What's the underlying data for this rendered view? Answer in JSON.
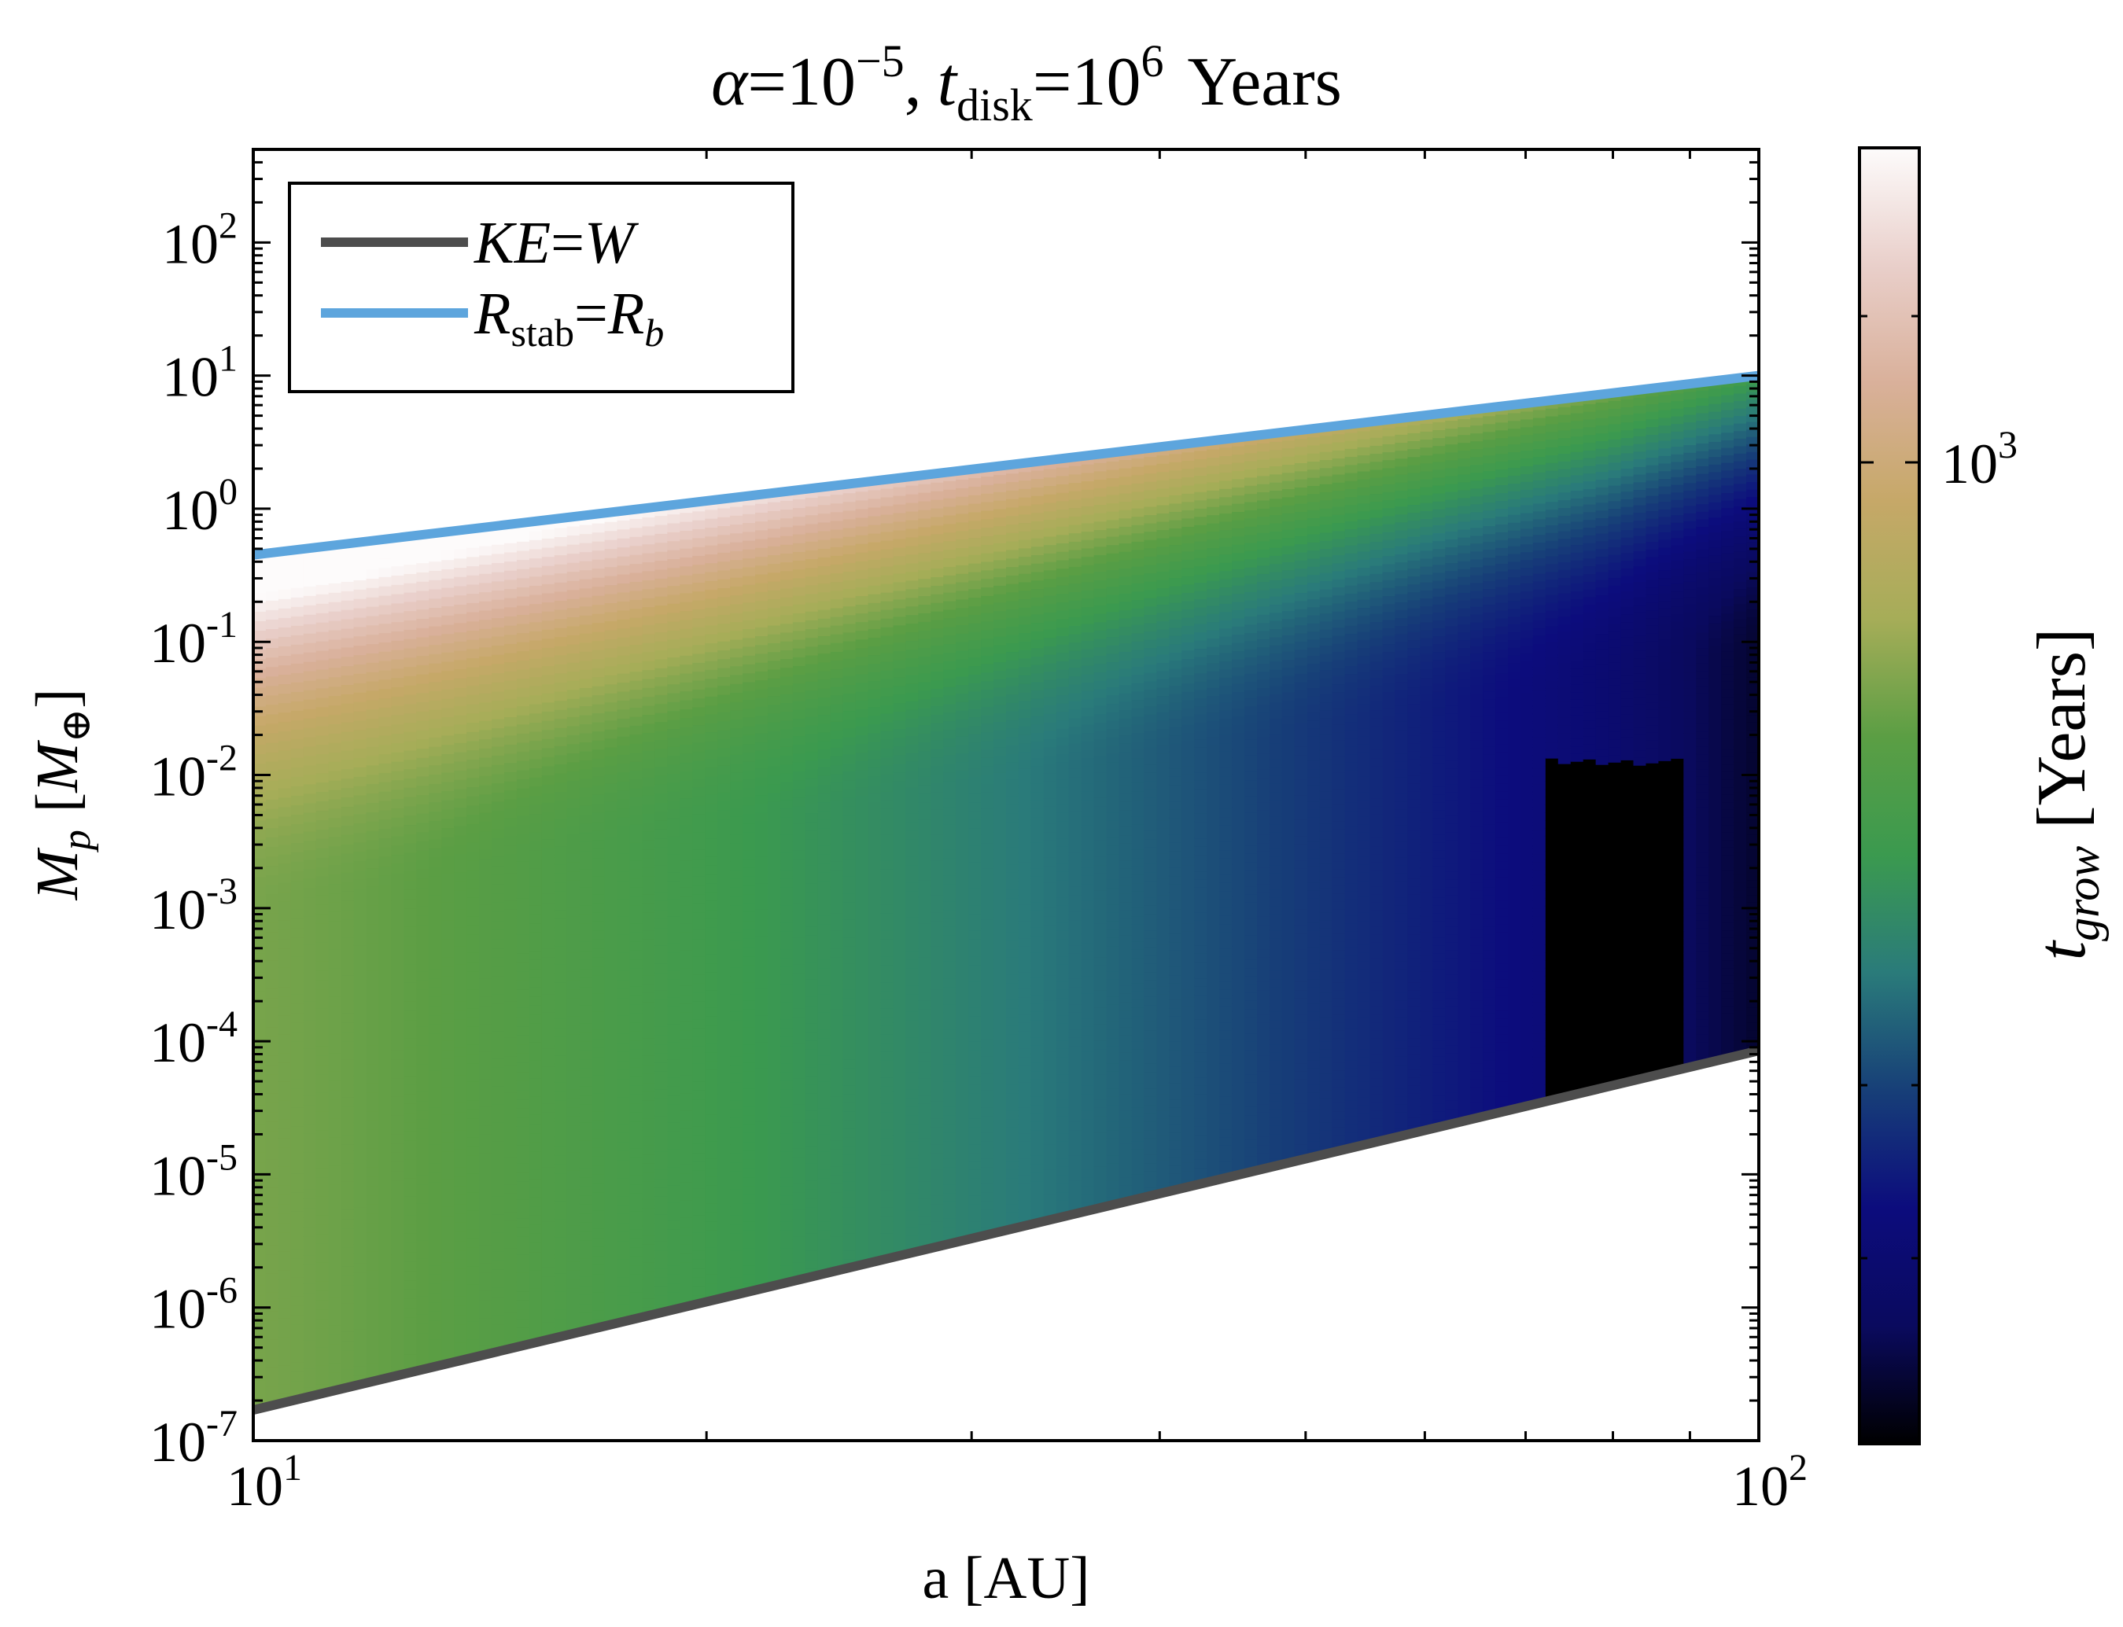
{
  "chart_data": {
    "type": "heatmap",
    "title": {
      "alpha_sym": "α",
      "alpha_eq": "=10",
      "alpha_exp": "−5",
      "sep": ",",
      "t_sym": "t",
      "t_sub": "disk",
      "t_eq": "=10",
      "t_exp": "6",
      "unit": "Years"
    },
    "xlabel": "a [AU]",
    "ylabel": {
      "main": "M",
      "sub": "p",
      "unit_open": "[",
      "unit_main": "M",
      "unit_sub": "⊕",
      "unit_close": "]"
    },
    "x_scale": "log",
    "y_scale": "log",
    "xlim": [
      10,
      100
    ],
    "ylim": [
      1e-07,
      500
    ],
    "x_ticks": [
      {
        "base": "10",
        "exp": "1",
        "value": 10
      },
      {
        "base": "10",
        "exp": "2",
        "value": 100
      }
    ],
    "y_ticks": [
      {
        "base": "10",
        "exp": "-7",
        "value": 1e-07
      },
      {
        "base": "10",
        "exp": "-6",
        "value": 1e-06
      },
      {
        "base": "10",
        "exp": "-5",
        "value": 1e-05
      },
      {
        "base": "10",
        "exp": "-4",
        "value": 0.0001
      },
      {
        "base": "10",
        "exp": "-3",
        "value": 0.001
      },
      {
        "base": "10",
        "exp": "-2",
        "value": 0.01
      },
      {
        "base": "10",
        "exp": "-1",
        "value": 0.1
      },
      {
        "base": "10",
        "exp": "0",
        "value": 1
      },
      {
        "base": "10",
        "exp": "1",
        "value": 10
      },
      {
        "base": "10",
        "exp": "2",
        "value": 100
      }
    ],
    "series": [
      {
        "name": "KE=W",
        "label_parts": {
          "a": "KE",
          "eq": "=",
          "b": "W"
        },
        "color": "#4d4d4d",
        "x": [
          10,
          100
        ],
        "y": [
          1.7e-07,
          8.5e-05
        ]
      },
      {
        "name": "R_stab=R_b",
        "label_parts": {
          "a": "R",
          "a_sub": "stab",
          "eq": "=",
          "b": "R",
          "b_sub": "b"
        },
        "color": "#5da5dd",
        "x": [
          10,
          100
        ],
        "y": [
          0.45,
          10
        ]
      }
    ],
    "legend_position": "top-left",
    "colorbar": {
      "label_main": "t",
      "label_sub": "grow",
      "label_unit": "[Years]",
      "tick_base": "10",
      "tick_exp": "3",
      "tick_value": 1000,
      "scale": "log",
      "colormap": "gist_earth",
      "colors": [
        "#000000",
        "#0a0a5e",
        "#0c0c7d",
        "#173f78",
        "#2a7b7a",
        "#3b9a4f",
        "#5b9e44",
        "#a6ad58",
        "#c6a868",
        "#d9b09a",
        "#e9cfca",
        "#fdfbfb"
      ]
    },
    "grid": false
  }
}
